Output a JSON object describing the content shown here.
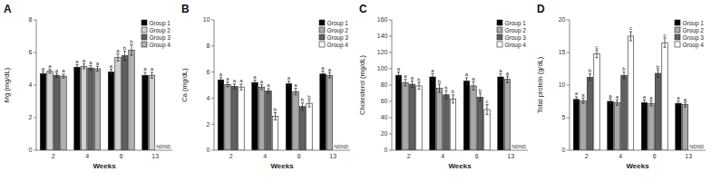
{
  "chart_data": [
    {
      "type": "bar",
      "title": "A",
      "xlabel": "Weeks",
      "ylabel": "Mg (mg/dL)",
      "categories": [
        "2",
        "4",
        "6",
        "13"
      ],
      "ylim": [
        0,
        8
      ],
      "yticks": [
        0,
        2,
        4,
        6,
        8
      ],
      "grid": false,
      "legend": "top-right",
      "series": [
        {
          "name": "Group 1",
          "color": "#000000",
          "values": [
            4.7,
            5.1,
            4.8,
            4.6
          ],
          "errors": [
            0.12,
            0.15,
            0.18,
            0.18
          ],
          "sig_labels": [
            "a",
            "a",
            "a",
            "a"
          ]
        },
        {
          "name": "Group 2",
          "color": "#d0d0d0",
          "values": [
            4.85,
            5.15,
            5.7,
            4.6
          ],
          "errors": [
            0.12,
            0.15,
            0.22,
            0.18
          ],
          "sig_labels": [
            "a",
            "a",
            "a",
            "a"
          ]
        },
        {
          "name": "Group 3",
          "color": "#606060",
          "values": [
            4.6,
            5.05,
            5.8,
            null
          ],
          "errors": [
            0.12,
            0.15,
            0.28,
            null
          ],
          "sig_labels": [
            "a",
            "a",
            "b",
            null
          ]
        },
        {
          "name": "Group 4",
          "color": "#b0b0b0",
          "values": [
            4.55,
            5.0,
            6.15,
            null
          ],
          "errors": [
            0.12,
            0.15,
            0.32,
            null
          ],
          "sig_labels": [
            "a",
            "a",
            "b",
            null
          ]
        }
      ],
      "annotations": [
        {
          "text": "NDND",
          "x": "13"
        }
      ]
    },
    {
      "type": "bar",
      "title": "B",
      "xlabel": "Weeks",
      "ylabel": "Ca (mg/dL)",
      "categories": [
        "2",
        "4",
        "6",
        "13"
      ],
      "ylim": [
        0,
        10
      ],
      "yticks": [
        0,
        2,
        4,
        6,
        8,
        10
      ],
      "grid": false,
      "legend": "top-right",
      "series": [
        {
          "name": "Group 1",
          "color": "#000000",
          "values": [
            5.4,
            5.2,
            5.1,
            5.85
          ],
          "errors": [
            0.18,
            0.18,
            0.2,
            0.22
          ],
          "sig_labels": [
            "a",
            "a",
            "a",
            "a"
          ]
        },
        {
          "name": "Group 2",
          "color": "#a8a8a8",
          "values": [
            5.05,
            4.85,
            4.5,
            5.75
          ],
          "errors": [
            0.18,
            0.18,
            0.25,
            0.2
          ],
          "sig_labels": [
            "a",
            "a",
            "a",
            "a"
          ]
        },
        {
          "name": "Group 3",
          "color": "#606060",
          "values": [
            4.9,
            4.55,
            3.35,
            null
          ],
          "errors": [
            0.18,
            0.18,
            0.28,
            null
          ],
          "sig_labels": [
            "a",
            "a",
            "b",
            null
          ]
        },
        {
          "name": "Group 4",
          "color": "#ffffff",
          "values": [
            4.85,
            2.6,
            3.6,
            null
          ],
          "errors": [
            0.22,
            0.28,
            0.28,
            null
          ],
          "sig_labels": [
            "a",
            "b",
            "b",
            null
          ]
        }
      ],
      "annotations": [
        {
          "text": "NDND",
          "x": "13"
        }
      ]
    },
    {
      "type": "bar",
      "title": "C",
      "xlabel": "Weeks",
      "ylabel": "Cholesterol (mg/dL)",
      "categories": [
        "2",
        "4",
        "6",
        "13"
      ],
      "ylim": [
        0,
        160
      ],
      "yticks": [
        0,
        20,
        40,
        60,
        80,
        100,
        120,
        140,
        160
      ],
      "grid": false,
      "legend": "top-right",
      "series": [
        {
          "name": "Group 1",
          "color": "#000000",
          "values": [
            92,
            90,
            85,
            90
          ],
          "errors": [
            4,
            4,
            4,
            4
          ],
          "sig_labels": [
            "a",
            "a",
            "a",
            "a"
          ]
        },
        {
          "name": "Group 2",
          "color": "#a8a8a8",
          "values": [
            83,
            76,
            79,
            87
          ],
          "errors": [
            4,
            5,
            5,
            4
          ],
          "sig_labels": [
            "a",
            "b",
            "a",
            "a"
          ]
        },
        {
          "name": "Group 3",
          "color": "#606060",
          "values": [
            81,
            68,
            65,
            null
          ],
          "errors": [
            4,
            5,
            5,
            null
          ],
          "sig_labels": [
            "a",
            "b",
            "b",
            null
          ]
        },
        {
          "name": "Group 4",
          "color": "#ffffff",
          "values": [
            79,
            63,
            50,
            null
          ],
          "errors": [
            4,
            5,
            6,
            null
          ],
          "sig_labels": [
            "b",
            "b",
            "c",
            null
          ]
        }
      ],
      "annotations": [
        {
          "text": "NDND",
          "x": "13"
        }
      ]
    },
    {
      "type": "bar",
      "title": "D",
      "xlabel": "Weeks",
      "ylabel": "Total protein (g/dL)",
      "categories": [
        "2",
        "4",
        "6",
        "13"
      ],
      "ylim": [
        0,
        20
      ],
      "yticks": [
        0,
        5,
        10,
        15,
        20
      ],
      "grid": false,
      "legend": "top-right",
      "series": [
        {
          "name": "Group 1",
          "color": "#000000",
          "values": [
            7.8,
            7.5,
            7.3,
            7.2
          ],
          "errors": [
            0.4,
            0.4,
            0.4,
            0.35
          ],
          "sig_labels": [
            "a",
            "a",
            "a",
            "a"
          ]
        },
        {
          "name": "Group 2",
          "color": "#a8a8a8",
          "values": [
            7.6,
            7.3,
            7.2,
            7.0
          ],
          "errors": [
            0.4,
            0.4,
            0.4,
            0.35
          ],
          "sig_labels": [
            "a",
            "a",
            "a",
            "a"
          ]
        },
        {
          "name": "Group 3",
          "color": "#606060",
          "values": [
            11.2,
            11.5,
            11.8,
            null
          ],
          "errors": [
            0.5,
            0.5,
            0.55,
            null
          ],
          "sig_labels": [
            "b",
            "b",
            "b",
            null
          ]
        },
        {
          "name": "Group 4",
          "color": "#ffffff",
          "values": [
            14.8,
            17.5,
            16.5,
            null
          ],
          "errors": [
            0.6,
            0.7,
            0.7,
            null
          ],
          "sig_labels": [
            "c",
            "c",
            "c",
            null
          ]
        }
      ],
      "annotations": [
        {
          "text": "NDND",
          "x": "13"
        }
      ]
    }
  ]
}
